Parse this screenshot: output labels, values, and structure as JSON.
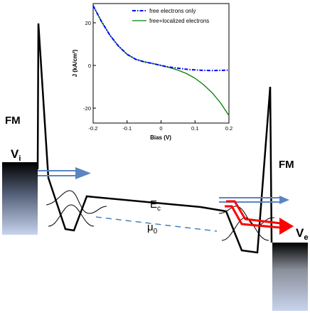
{
  "diagram": {
    "left_label": "FM",
    "right_label": "FM",
    "left_voltage": {
      "main": "V",
      "sub": "i"
    },
    "right_voltage": {
      "main": "V",
      "sub": "e"
    },
    "conduction_band": {
      "main": "E",
      "sub": "c"
    },
    "chemical_potential": {
      "main": "μ",
      "sub": "0"
    },
    "colors": {
      "free_arrow": "#5b85c2",
      "localized_arrow": "#ff0000",
      "band_line": "#000000",
      "mu_line": "#4a7ec0"
    }
  },
  "chart_data": {
    "type": "line",
    "xlabel": "Bias (V)",
    "ylabel": "J (kA/cm²)",
    "xlim": [
      -0.2,
      0.2
    ],
    "ylim": [
      -27,
      29
    ],
    "xticks": [
      "-0.2",
      "-0.1",
      "0",
      "0.1",
      "0.2"
    ],
    "yticks": [
      "20",
      "0",
      "-20"
    ],
    "legend_position": "top-right",
    "x": [
      -0.2,
      -0.175,
      -0.15,
      -0.125,
      -0.1,
      -0.075,
      -0.05,
      -0.025,
      0.0,
      0.025,
      0.05,
      0.075,
      0.1,
      0.125,
      0.15,
      0.175,
      0.2
    ],
    "series": [
      {
        "name": "free electrons only",
        "color": "#0000ff",
        "style": "dash-dot",
        "values": [
          28,
          20.5,
          14,
          9,
          5.2,
          2.9,
          1.7,
          0.9,
          0,
          -0.8,
          -1.3,
          -1.8,
          -2.1,
          -2.3,
          -2.4,
          -2.3,
          -2.2
        ]
      },
      {
        "name": "free+localized electrons",
        "color": "#008000",
        "style": "solid",
        "values": [
          28,
          20.5,
          14,
          9,
          5.2,
          2.9,
          1.7,
          0.9,
          0,
          -1.0,
          -2.2,
          -3.8,
          -6.0,
          -9.0,
          -12.7,
          -17.5,
          -23.5
        ]
      }
    ]
  }
}
